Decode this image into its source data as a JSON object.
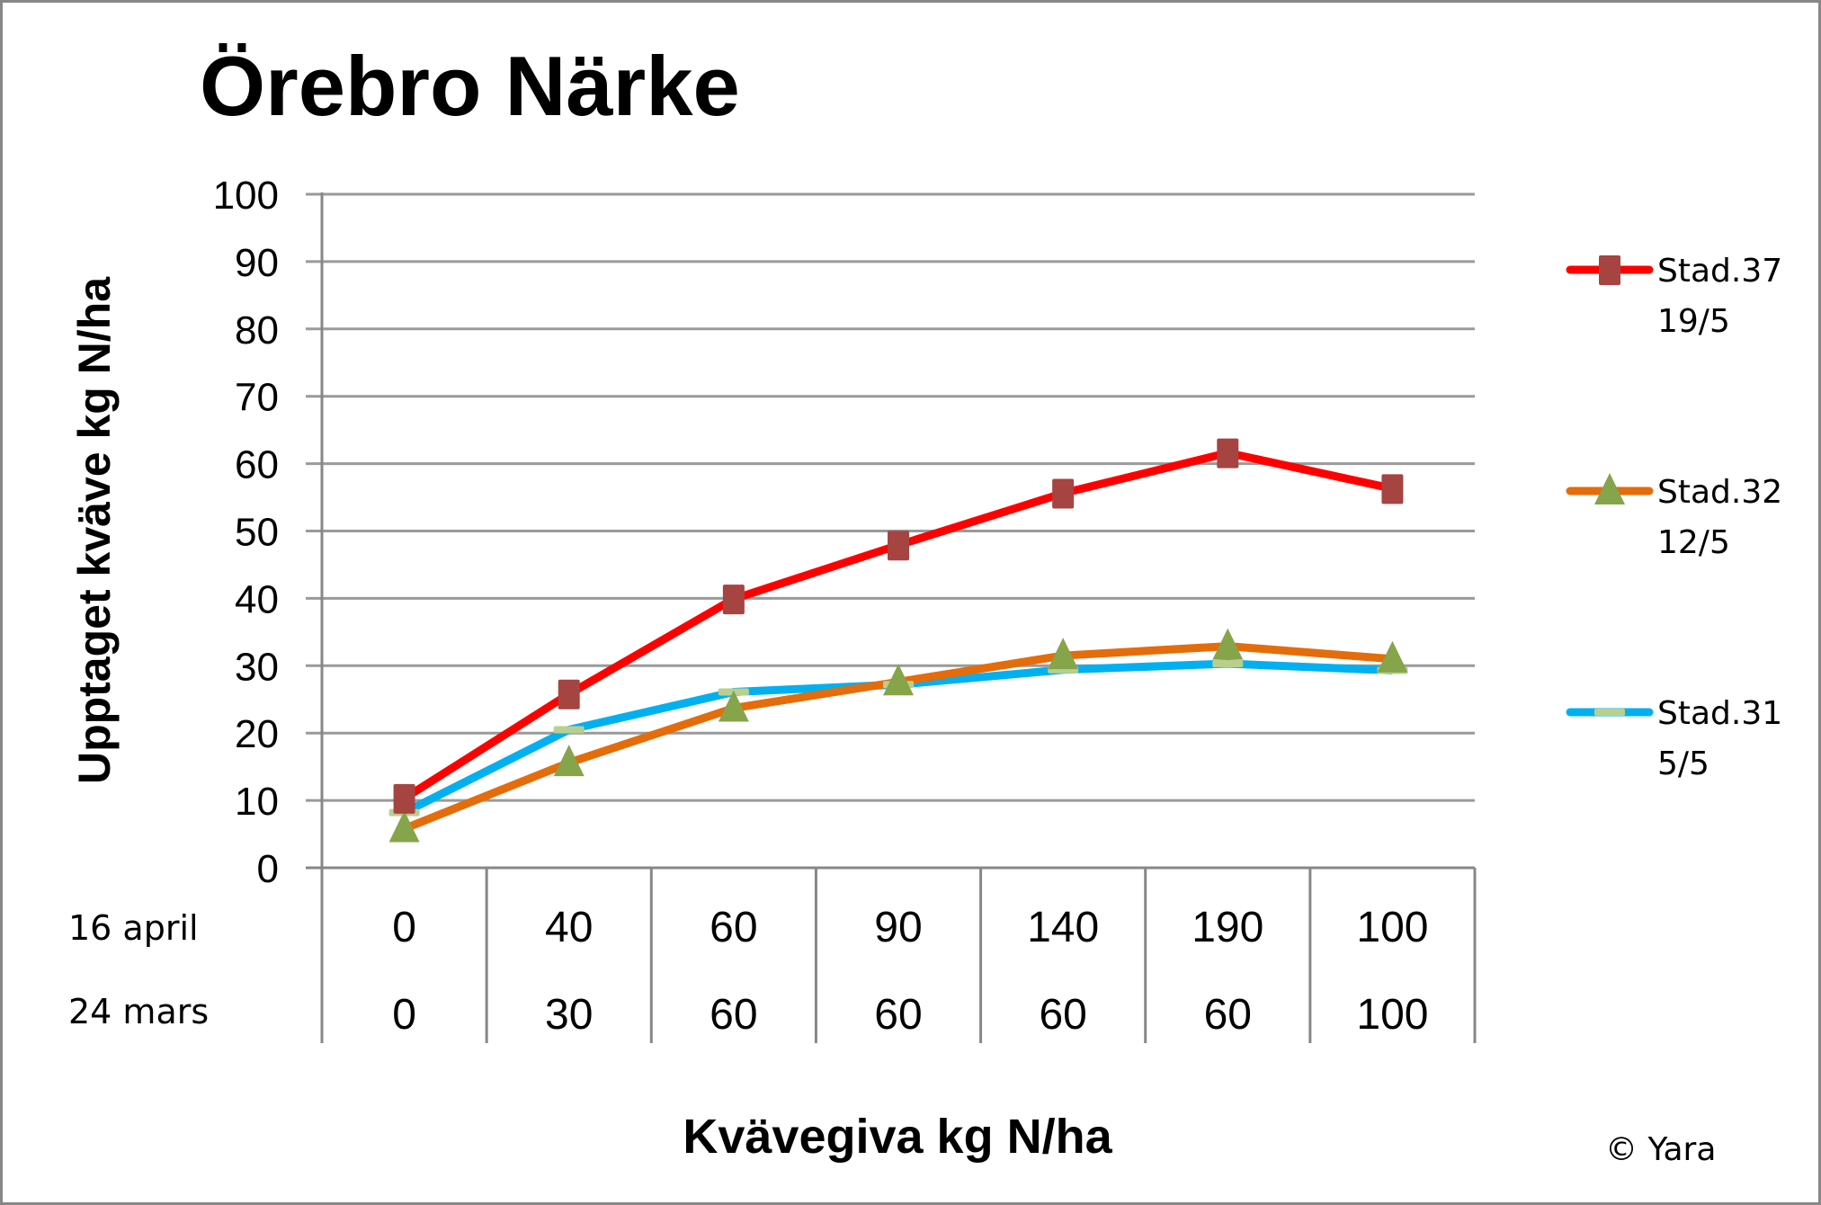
{
  "chart_data": {
    "type": "line",
    "title": "Örebro Närke",
    "ylabel": "Upptaget kväve kg N/ha",
    "xlabel": "Kvävegiva kg N/ha",
    "ylim": [
      0,
      100
    ],
    "yticks": [
      0,
      10,
      20,
      30,
      40,
      50,
      60,
      70,
      80,
      90,
      100
    ],
    "grid": true,
    "legend_position": "right",
    "category_rows": [
      {
        "label": "16 april",
        "values": [
          "0",
          "40",
          "60",
          "90",
          "140",
          "190",
          "100"
        ]
      },
      {
        "label": "24 mars",
        "values": [
          "0",
          "30",
          "60",
          "60",
          "60",
          "60",
          "100"
        ]
      }
    ],
    "categories": [
      "0 / 0",
      "40 / 30",
      "60 / 60",
      "90 / 60",
      "140 / 60",
      "190 / 60",
      "100 / 100"
    ],
    "series": [
      {
        "name": "Stad.37",
        "sub": "19/5",
        "line_color": "#FF0000",
        "marker": "square",
        "marker_color": "#A64441",
        "values": [
          10.3,
          25.8,
          39.9,
          47.9,
          55.6,
          61.6,
          56.3
        ]
      },
      {
        "name": "Stad.32",
        "sub": "12/5",
        "line_color": "#E46C0A",
        "marker": "triangle",
        "marker_color": "#86A44A",
        "values": [
          5.8,
          15.6,
          23.7,
          27.6,
          31.5,
          32.9,
          31.0
        ]
      },
      {
        "name": "Stad.31",
        "sub": "5/5",
        "line_color": "#00B0F0",
        "marker": "dash",
        "marker_color": "#B9CF90",
        "values": [
          8.2,
          20.5,
          26.1,
          27.2,
          29.4,
          30.3,
          29.3
        ]
      }
    ],
    "annotations": [
      "© Yara"
    ]
  },
  "copyright": "© Yara"
}
